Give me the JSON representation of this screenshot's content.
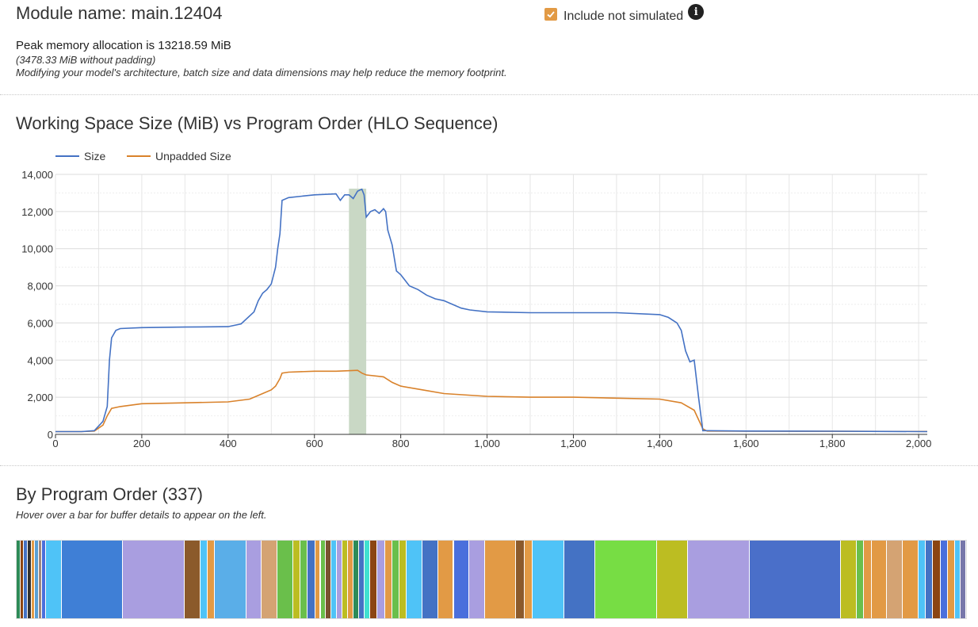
{
  "header": {
    "module_title": "Module name: main.12404",
    "include_label": "Include not simulated",
    "include_checked": true,
    "info_icon": "info-circle-icon",
    "peak_text": "Peak memory allocation is 13218.59 MiB",
    "nopad_text": "(3478.33 MiB without padding)",
    "hint_text": "Modifying your model's architecture, batch size and data dimensions may help reduce the memory footprint."
  },
  "colors": {
    "size": "#4472c4",
    "unpadded": "#d9822b",
    "highlight": "#c9d8c5",
    "checkbox": "#e29a45"
  },
  "chart_title": "Working Space Size (MiB) vs Program Order (HLO Sequence)",
  "chart_data": {
    "type": "line",
    "title": "Working Space Size (MiB) vs Program Order (HLO Sequence)",
    "xlim": [
      0,
      2020
    ],
    "ylim": [
      0,
      14000
    ],
    "x_ticks": [
      0,
      200,
      400,
      600,
      800,
      1000,
      1200,
      1400,
      1600,
      1800,
      2000
    ],
    "x_tick_labels": [
      "0",
      "200",
      "400",
      "600",
      "800",
      "1,000",
      "1,200",
      "1,400",
      "1,600",
      "1,800",
      "2,000"
    ],
    "y_ticks": [
      0,
      2000,
      4000,
      6000,
      8000,
      10000,
      12000,
      14000
    ],
    "y_tick_labels": [
      "0",
      "2,000",
      "4,000",
      "6,000",
      "8,000",
      "10,000",
      "12,000",
      "14,000"
    ],
    "grid": true,
    "legend_position": "top-left",
    "highlight_range": [
      680,
      720
    ],
    "series": [
      {
        "name": "Size",
        "color": "#4472c4",
        "points": [
          [
            0,
            150
          ],
          [
            60,
            150
          ],
          [
            90,
            200
          ],
          [
            110,
            700
          ],
          [
            120,
            1500
          ],
          [
            125,
            4000
          ],
          [
            130,
            5200
          ],
          [
            135,
            5400
          ],
          [
            140,
            5600
          ],
          [
            150,
            5700
          ],
          [
            200,
            5750
          ],
          [
            300,
            5780
          ],
          [
            400,
            5800
          ],
          [
            430,
            5950
          ],
          [
            460,
            6600
          ],
          [
            470,
            7200
          ],
          [
            480,
            7600
          ],
          [
            490,
            7800
          ],
          [
            500,
            8100
          ],
          [
            510,
            9000
          ],
          [
            515,
            10000
          ],
          [
            520,
            10800
          ],
          [
            525,
            12600
          ],
          [
            540,
            12750
          ],
          [
            600,
            12900
          ],
          [
            650,
            12950
          ],
          [
            660,
            12600
          ],
          [
            670,
            12900
          ],
          [
            680,
            12900
          ],
          [
            690,
            12700
          ],
          [
            700,
            13100
          ],
          [
            710,
            13200
          ],
          [
            715,
            12900
          ],
          [
            720,
            11700
          ],
          [
            730,
            12000
          ],
          [
            740,
            12100
          ],
          [
            750,
            11900
          ],
          [
            760,
            12150
          ],
          [
            765,
            12000
          ],
          [
            770,
            11000
          ],
          [
            780,
            10200
          ],
          [
            790,
            8800
          ],
          [
            800,
            8600
          ],
          [
            820,
            8000
          ],
          [
            840,
            7800
          ],
          [
            860,
            7500
          ],
          [
            880,
            7300
          ],
          [
            900,
            7200
          ],
          [
            920,
            7000
          ],
          [
            940,
            6800
          ],
          [
            960,
            6700
          ],
          [
            1000,
            6600
          ],
          [
            1100,
            6550
          ],
          [
            1200,
            6550
          ],
          [
            1300,
            6550
          ],
          [
            1400,
            6450
          ],
          [
            1420,
            6300
          ],
          [
            1440,
            6000
          ],
          [
            1450,
            5600
          ],
          [
            1460,
            4500
          ],
          [
            1470,
            3900
          ],
          [
            1480,
            4000
          ],
          [
            1490,
            2000
          ],
          [
            1500,
            200
          ],
          [
            1600,
            180
          ],
          [
            1800,
            170
          ],
          [
            2020,
            150
          ]
        ]
      },
      {
        "name": "Unpadded Size",
        "color": "#d9822b",
        "points": [
          [
            0,
            150
          ],
          [
            60,
            150
          ],
          [
            90,
            180
          ],
          [
            110,
            500
          ],
          [
            120,
            1000
          ],
          [
            130,
            1400
          ],
          [
            150,
            1500
          ],
          [
            200,
            1650
          ],
          [
            300,
            1700
          ],
          [
            400,
            1750
          ],
          [
            450,
            1900
          ],
          [
            480,
            2200
          ],
          [
            500,
            2400
          ],
          [
            510,
            2600
          ],
          [
            520,
            3000
          ],
          [
            525,
            3300
          ],
          [
            540,
            3350
          ],
          [
            600,
            3400
          ],
          [
            650,
            3400
          ],
          [
            700,
            3450
          ],
          [
            710,
            3300
          ],
          [
            720,
            3200
          ],
          [
            760,
            3100
          ],
          [
            780,
            2800
          ],
          [
            800,
            2600
          ],
          [
            850,
            2400
          ],
          [
            900,
            2200
          ],
          [
            1000,
            2050
          ],
          [
            1100,
            2000
          ],
          [
            1200,
            2000
          ],
          [
            1300,
            1950
          ],
          [
            1400,
            1900
          ],
          [
            1450,
            1700
          ],
          [
            1480,
            1300
          ],
          [
            1500,
            300
          ],
          [
            1510,
            180
          ],
          [
            1600,
            170
          ],
          [
            1800,
            165
          ],
          [
            2020,
            160
          ]
        ]
      }
    ]
  },
  "program_order": {
    "title": "By Program Order (337)",
    "hint": "Hover over a bar for buffer details to appear on the left.",
    "count": 337,
    "segments": [
      {
        "w": 0.004,
        "color": "#2e8b57"
      },
      {
        "w": 0.004,
        "color": "#8b4513"
      },
      {
        "w": 0.004,
        "color": "#4472c4"
      },
      {
        "w": 0.004,
        "color": "#333333"
      },
      {
        "w": 0.004,
        "color": "#e29a45"
      },
      {
        "w": 0.004,
        "color": "#5a9fd4"
      },
      {
        "w": 0.004,
        "color": "#a1887f"
      },
      {
        "w": 0.004,
        "color": "#4a6fdc"
      },
      {
        "w": 0.017,
        "color": "#4fc3f7"
      },
      {
        "w": 0.067,
        "color": "#3f7fd6"
      },
      {
        "w": 0.067,
        "color": "#a99ee0"
      },
      {
        "w": 0.017,
        "color": "#8b5a2b"
      },
      {
        "w": 0.008,
        "color": "#4fc3f7"
      },
      {
        "w": 0.008,
        "color": "#e29a45"
      },
      {
        "w": 0.034,
        "color": "#5aaee8"
      },
      {
        "w": 0.017,
        "color": "#a99ee0"
      },
      {
        "w": 0.017,
        "color": "#d4a373"
      },
      {
        "w": 0.017,
        "color": "#6abf4b"
      },
      {
        "w": 0.008,
        "color": "#bcbd22"
      },
      {
        "w": 0.008,
        "color": "#6abf4b"
      },
      {
        "w": 0.008,
        "color": "#4472c4"
      },
      {
        "w": 0.006,
        "color": "#e29a45"
      },
      {
        "w": 0.006,
        "color": "#6abf4b"
      },
      {
        "w": 0.006,
        "color": "#7a5230"
      },
      {
        "w": 0.006,
        "color": "#4fc3f7"
      },
      {
        "w": 0.006,
        "color": "#a99ee0"
      },
      {
        "w": 0.006,
        "color": "#bcbd22"
      },
      {
        "w": 0.006,
        "color": "#e29a45"
      },
      {
        "w": 0.006,
        "color": "#2e8b57"
      },
      {
        "w": 0.006,
        "color": "#4472c4"
      },
      {
        "w": 0.006,
        "color": "#40e0d0"
      },
      {
        "w": 0.008,
        "color": "#8b4513"
      },
      {
        "w": 0.008,
        "color": "#a99ee0"
      },
      {
        "w": 0.008,
        "color": "#e29a45"
      },
      {
        "w": 0.008,
        "color": "#6abf4b"
      },
      {
        "w": 0.008,
        "color": "#bcbd22"
      },
      {
        "w": 0.017,
        "color": "#4fc3f7"
      },
      {
        "w": 0.017,
        "color": "#4472c4"
      },
      {
        "w": 0.017,
        "color": "#e29a45"
      },
      {
        "w": 0.017,
        "color": "#4a6fdc"
      },
      {
        "w": 0.017,
        "color": "#a99ee0"
      },
      {
        "w": 0.034,
        "color": "#e29a45"
      },
      {
        "w": 0.009,
        "color": "#8b5a2b"
      },
      {
        "w": 0.009,
        "color": "#e29a45"
      },
      {
        "w": 0.034,
        "color": "#4fc3f7"
      },
      {
        "w": 0.034,
        "color": "#4472c4"
      },
      {
        "w": 0.067,
        "color": "#77dd44"
      },
      {
        "w": 0.034,
        "color": "#bcbd22"
      },
      {
        "w": 0.067,
        "color": "#a99ee0"
      },
      {
        "w": 0.1,
        "color": "#4a6fc9"
      },
      {
        "w": 0.017,
        "color": "#bcbd22"
      },
      {
        "w": 0.008,
        "color": "#6abf4b"
      },
      {
        "w": 0.008,
        "color": "#e29a45"
      },
      {
        "w": 0.017,
        "color": "#e29a45"
      },
      {
        "w": 0.017,
        "color": "#d4a373"
      },
      {
        "w": 0.017,
        "color": "#e29a45"
      },
      {
        "w": 0.008,
        "color": "#4fc3f7"
      },
      {
        "w": 0.008,
        "color": "#4472c4"
      },
      {
        "w": 0.008,
        "color": "#8b4513"
      },
      {
        "w": 0.008,
        "color": "#4a6fdc"
      },
      {
        "w": 0.008,
        "color": "#e29a45"
      },
      {
        "w": 0.006,
        "color": "#4fc3f7"
      },
      {
        "w": 0.006,
        "color": "#7777aa"
      }
    ]
  }
}
